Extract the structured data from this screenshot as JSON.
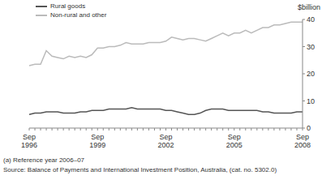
{
  "chart_data": {
    "type": "line",
    "y_label": "$billion",
    "categories": [
      "Sep 1996",
      null,
      null,
      null,
      null,
      null,
      null,
      null,
      null,
      null,
      null,
      null,
      "Sep 1999",
      null,
      null,
      null,
      null,
      null,
      null,
      null,
      null,
      null,
      null,
      null,
      "Sep 2002",
      null,
      null,
      null,
      null,
      null,
      null,
      null,
      null,
      null,
      null,
      null,
      "Sep 2005",
      null,
      null,
      null,
      null,
      null,
      null,
      null,
      null,
      null,
      null,
      null,
      "Sep 2008"
    ],
    "series": [
      {
        "name": "Rural goods",
        "color": "#555555",
        "values": [
          5,
          5.5,
          5.5,
          6,
          6,
          6,
          5.5,
          5.5,
          5.5,
          6,
          6,
          6.5,
          6.5,
          6.5,
          7,
          7,
          7,
          7,
          7.5,
          7,
          7,
          7,
          7,
          7,
          6.5,
          6.5,
          6,
          5.5,
          5,
          5,
          5.5,
          6.5,
          7,
          7,
          7,
          6.5,
          6.5,
          6.5,
          6.5,
          6.5,
          6.5,
          6,
          6,
          5.5,
          5.5,
          5.5,
          5.5,
          6,
          6
        ]
      },
      {
        "name": "Non-rural and other",
        "color": "#bbbbbb",
        "values": [
          23,
          23.5,
          23.5,
          28.5,
          26.5,
          26,
          25.5,
          26.5,
          26,
          26.5,
          26,
          27,
          29.5,
          29.5,
          30,
          30,
          30.5,
          31.5,
          31,
          31,
          31,
          31.5,
          31.5,
          31.5,
          32,
          33.5,
          33,
          32.5,
          33,
          33,
          32.5,
          32,
          33,
          34,
          35,
          34,
          35,
          35,
          36,
          35,
          36,
          37,
          37,
          38,
          38,
          38.5,
          39,
          39,
          39
        ]
      }
    ],
    "ylim": [
      0,
      40
    ],
    "yticks": [
      0,
      10,
      20,
      30,
      40
    ],
    "grid": false,
    "legend": "upper left",
    "notes": [
      "(a) Reference year 2006–07",
      "Source: Balance of Payments and International Investment Position, Australia, (cat. no. 5302.0)"
    ]
  }
}
